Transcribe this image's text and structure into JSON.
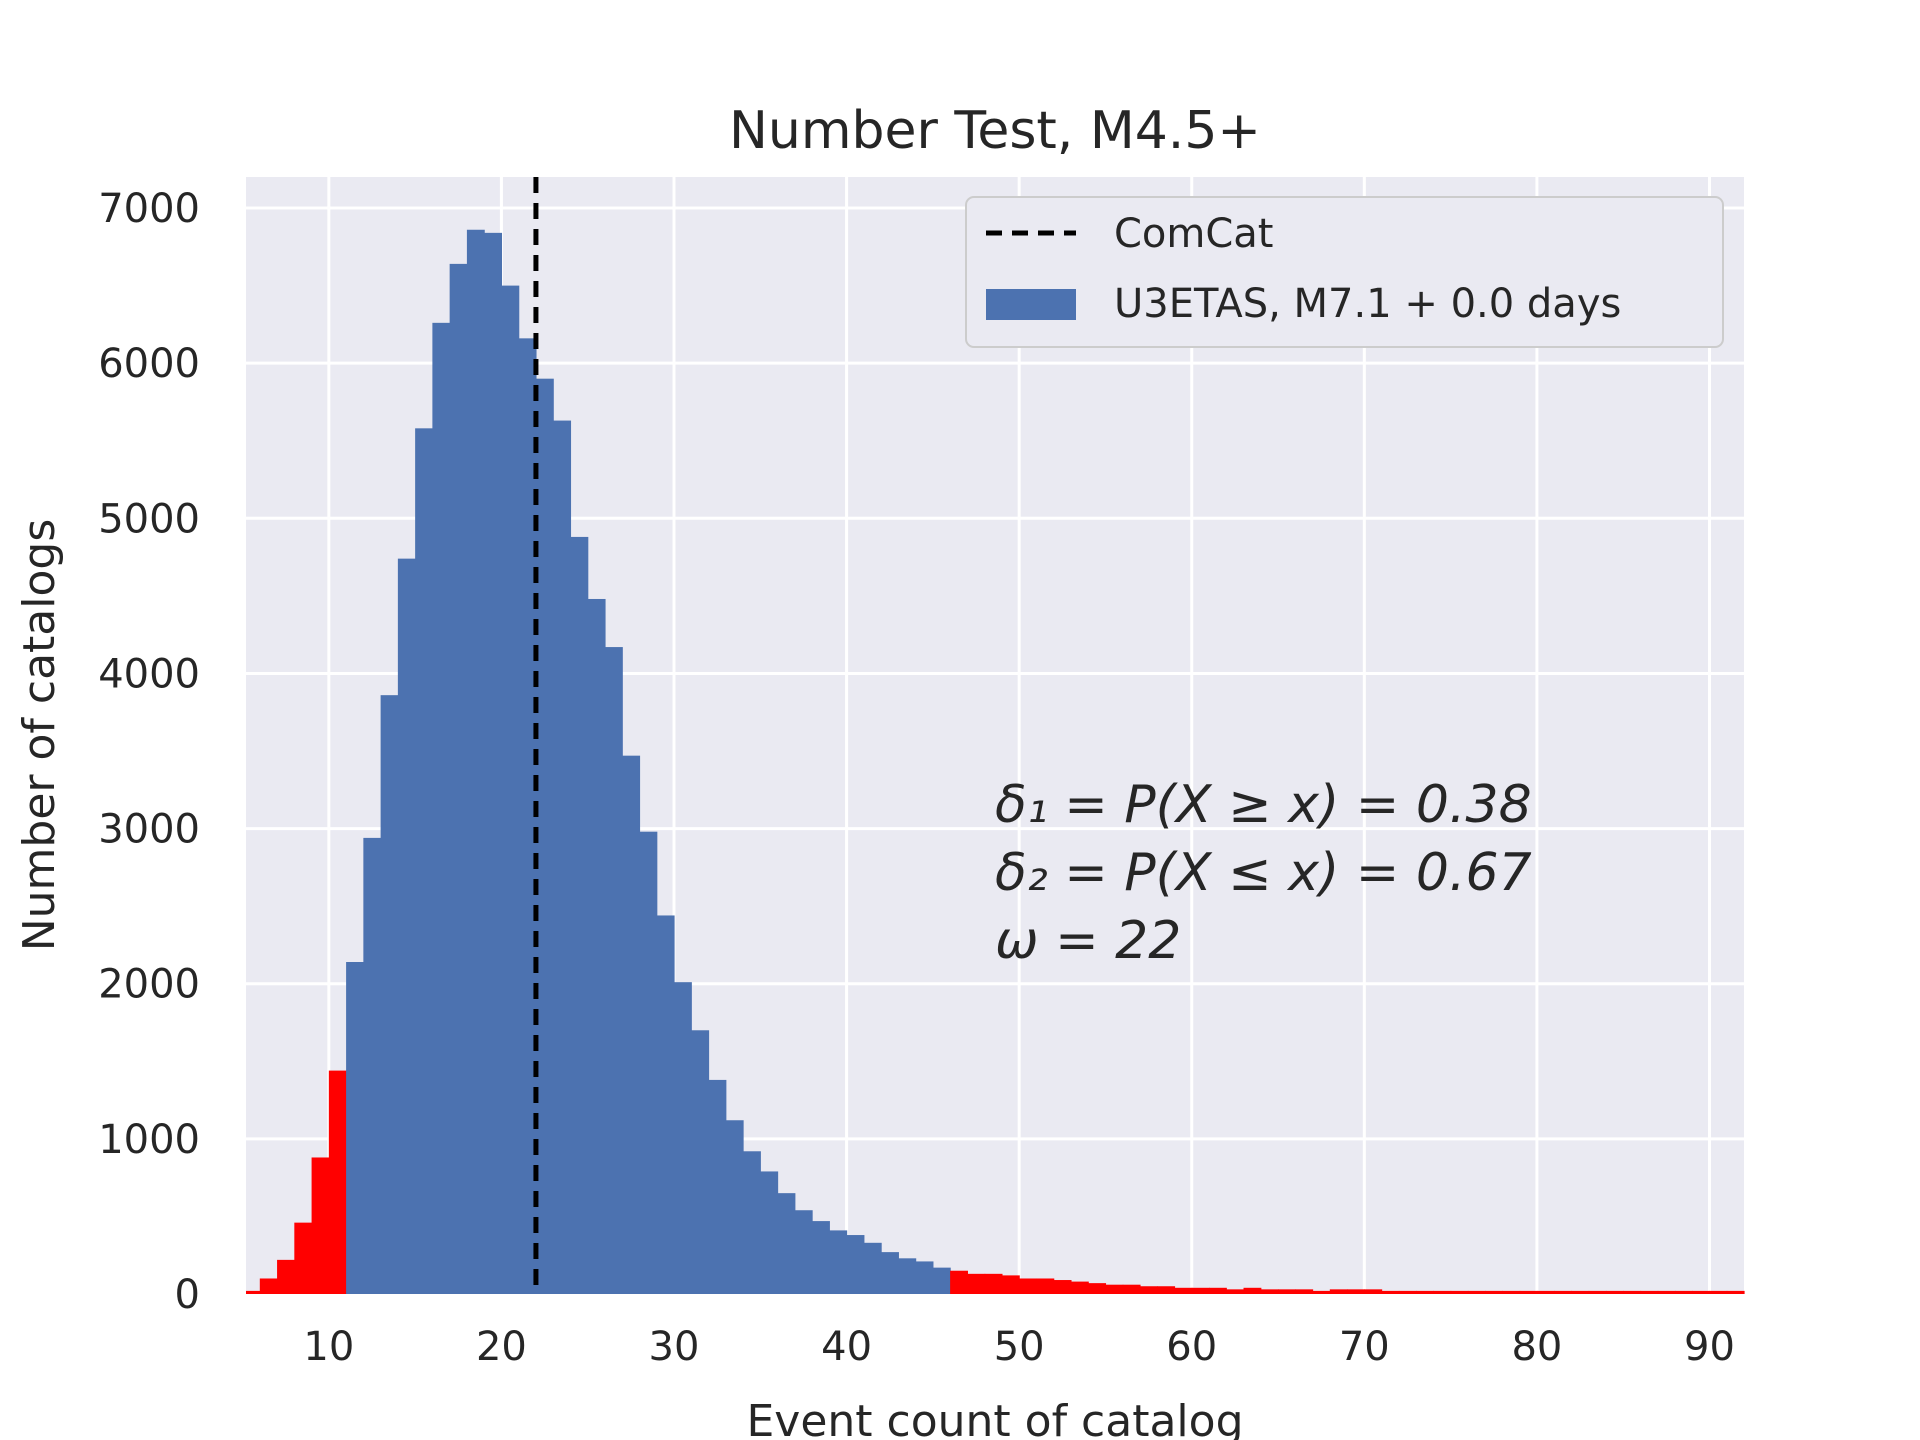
{
  "chart_data": {
    "type": "bar",
    "title": "Number Test, M4.5+",
    "xlabel": "Event count of catalog",
    "ylabel": "Number of catalogs",
    "xlim": [
      5.2,
      92
    ],
    "ylim": [
      0,
      7200
    ],
    "xticks": [
      10,
      20,
      30,
      40,
      50,
      60,
      70,
      80,
      90
    ],
    "yticks": [
      0,
      1000,
      2000,
      3000,
      4000,
      5000,
      6000,
      7000
    ],
    "xtick_labels": [
      "10",
      "20",
      "30",
      "40",
      "50",
      "60",
      "70",
      "80",
      "90"
    ],
    "ytick_labels": [
      "0",
      "1000",
      "2000",
      "3000",
      "4000",
      "5000",
      "6000",
      "7000"
    ],
    "grid": true,
    "legend_position": "top-right",
    "bin_width": 1,
    "bins_start": [
      5,
      6,
      7,
      8,
      9,
      10,
      11,
      12,
      13,
      14,
      15,
      16,
      17,
      18,
      19,
      20,
      21,
      22,
      23,
      24,
      25,
      26,
      27,
      28,
      29,
      30,
      31,
      32,
      33,
      34,
      35,
      36,
      37,
      38,
      39,
      40,
      41,
      42,
      43,
      44,
      45,
      46,
      47,
      48,
      49,
      50,
      51,
      52,
      53,
      54,
      55,
      56,
      57,
      58,
      59,
      60,
      61,
      62,
      63,
      64,
      65,
      66,
      67,
      68,
      69,
      70,
      71,
      72,
      73,
      74,
      75,
      76,
      77,
      78,
      79,
      80,
      81,
      82,
      83,
      84,
      85,
      86,
      87,
      88,
      89,
      90,
      91
    ],
    "counts": [
      20,
      100,
      220,
      460,
      880,
      1440,
      2140,
      2940,
      3860,
      4740,
      5580,
      6260,
      6640,
      6860,
      6840,
      6500,
      6160,
      5900,
      5630,
      4880,
      4480,
      4170,
      3470,
      2980,
      2440,
      2010,
      1700,
      1380,
      1120,
      920,
      790,
      650,
      540,
      470,
      410,
      380,
      330,
      270,
      230,
      210,
      170,
      150,
      130,
      130,
      120,
      100,
      100,
      90,
      80,
      70,
      60,
      60,
      50,
      50,
      40,
      40,
      40,
      30,
      40,
      30,
      30,
      30,
      20,
      30,
      30,
      30,
      20,
      20,
      20,
      20,
      20,
      20,
      20,
      20,
      20,
      20,
      20,
      20,
      20,
      20,
      20,
      20,
      20,
      20,
      20,
      20,
      20
    ],
    "series": [
      {
        "name": "ComCat",
        "type": "vline",
        "x": 22,
        "style": "dashed",
        "color": "#000000"
      },
      {
        "name": "U3ETAS, M7.1 + 0.0 days",
        "type": "histogram",
        "color": "#4c72b0",
        "tail_color": "#ff0000",
        "tail_ranges": [
          [
            5,
            11
          ],
          [
            46,
            92
          ]
        ]
      }
    ],
    "annotations": [
      "δ₁ = P(X ≥ x) = 0.38",
      "δ₂ = P(X ≤ x) = 0.67",
      "ω = 22"
    ]
  },
  "colors": {
    "background": "#ffffff",
    "plot_area": "#eaeaf2",
    "grid": "#ffffff",
    "bars": "#4c72b0",
    "tails": "#ff0000",
    "vline": "#000000"
  }
}
